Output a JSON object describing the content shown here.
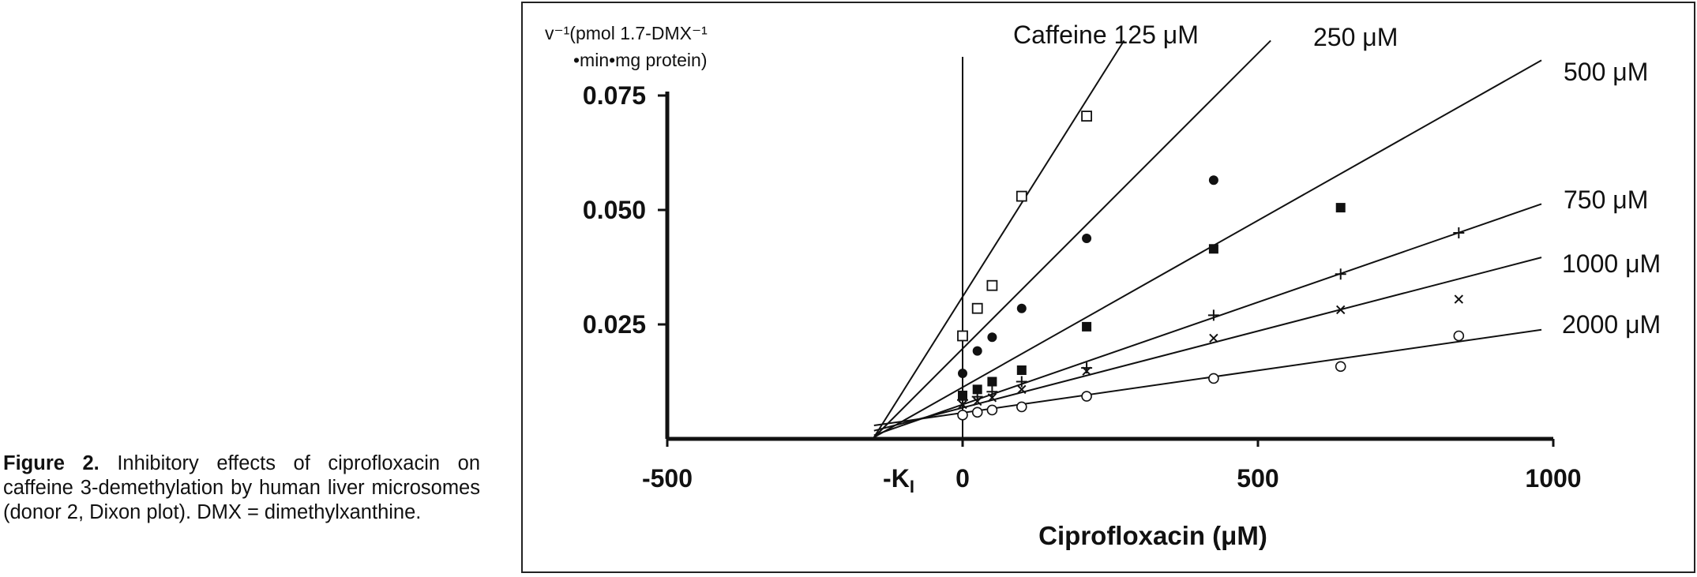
{
  "caption": {
    "label": "Figure 2.",
    "text": "Inhibitory effects of ciprofloxacin on caffeine 3-demethylation by human liver microsomes (donor 2, Dixon plot). DMX = dimethylxanthine."
  },
  "chart_data": {
    "type": "scatter",
    "xlabel": "Ciprofloxacin (μM)",
    "ylabel_line1": "v⁻¹(pmol 1.7-DMX⁻¹",
    "ylabel_line2": "•min•mg protein)",
    "xlim": [
      -500,
      1000
    ],
    "ylim": [
      0,
      0.075
    ],
    "x_ticks": [
      -500,
      0,
      500,
      1000
    ],
    "x_tick_labels": [
      "-500",
      "0",
      "500",
      "1000"
    ],
    "y_ticks": [
      0.025,
      0.05,
      0.075
    ],
    "y_tick_labels": [
      "0.025",
      "0.050",
      "0.075"
    ],
    "ki_label": "-K",
    "ki_subscript": "I",
    "ki_value": -90,
    "grid": false,
    "series": [
      {
        "name": "Caffeine 125 μM",
        "marker": "open-square",
        "x": [
          0,
          25,
          50,
          100,
          210
        ],
        "y": [
          0.0225,
          0.0285,
          0.0335,
          0.053,
          0.0705
        ],
        "line": {
          "intercept": 0.0255,
          "slope": 0.000225
        }
      },
      {
        "name": "250 μM",
        "marker": "filled-circle",
        "x": [
          0,
          25,
          50,
          100,
          210,
          425
        ],
        "y": [
          0.0143,
          0.0192,
          0.0222,
          0.0285,
          0.0438,
          0.0565
        ],
        "line": {
          "intercept": 0.0145,
          "slope": 0.000139
        }
      },
      {
        "name": "500 μM",
        "marker": "filled-square",
        "x": [
          0,
          25,
          50,
          100,
          210,
          425,
          640
        ],
        "y": [
          0.0095,
          0.0108,
          0.0125,
          0.015,
          0.0245,
          0.0415,
          0.0505
        ],
        "line": {
          "intercept": 0.0085,
          "slope": 7.57e-05
        }
      },
      {
        "name": "750 μM",
        "marker": "plus",
        "x": [
          0,
          25,
          50,
          100,
          210,
          425,
          640,
          840
        ],
        "y": [
          0.0085,
          0.0092,
          0.0103,
          0.0125,
          0.0155,
          0.027,
          0.036,
          0.045
        ],
        "line": {
          "intercept": 0.0075,
          "slope": 4.47e-05
        }
      },
      {
        "name": "1000 μM",
        "marker": "cross",
        "x": [
          0,
          25,
          50,
          100,
          210,
          425,
          640,
          840
        ],
        "y": [
          0.0075,
          0.0082,
          0.009,
          0.0108,
          0.0148,
          0.022,
          0.0282,
          0.0305
        ],
        "line": {
          "intercept": 0.0068,
          "slope": 3.35e-05
        }
      },
      {
        "name": "2000 μM",
        "marker": "open-circle",
        "x": [
          0,
          25,
          50,
          100,
          210,
          425,
          640,
          840
        ],
        "y": [
          0.0052,
          0.0058,
          0.0063,
          0.007,
          0.0093,
          0.0132,
          0.0158,
          0.0225
        ],
        "line": {
          "intercept": 0.0057,
          "slope": 1.85e-05
        }
      }
    ]
  }
}
